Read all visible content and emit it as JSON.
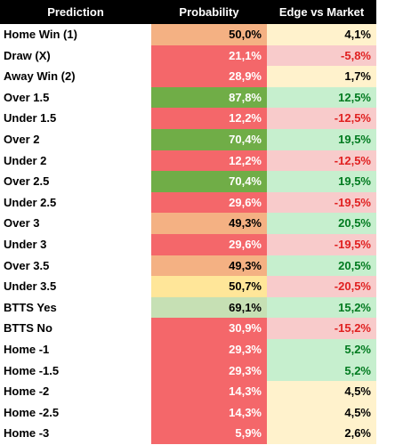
{
  "header": {
    "columns": [
      "Prediction",
      "Probability",
      "Edge vs Market"
    ]
  },
  "table": {
    "rows": [
      [
        "Home Win (1)",
        "50,0%",
        "4,1%"
      ],
      [
        "Draw (X)",
        "21,1%",
        "-5,8%"
      ],
      [
        "Away Win (2)",
        "28,9%",
        "1,7%"
      ],
      [
        "Over 1.5",
        "87,8%",
        "12,5%"
      ],
      [
        "Under 1.5",
        "12,2%",
        "-12,5%"
      ],
      [
        "Over 2",
        "70,4%",
        "19,5%"
      ],
      [
        "Under 2",
        "12,2%",
        "-12,5%"
      ],
      [
        "Over 2.5",
        "70,4%",
        "19,5%"
      ],
      [
        "Under 2.5",
        "29,6%",
        "-19,5%"
      ],
      [
        "Over 3",
        "49,3%",
        "20,5%"
      ],
      [
        "Under 3",
        "29,6%",
        "-19,5%"
      ],
      [
        "Over 3.5",
        "49,3%",
        "20,5%"
      ],
      [
        "Under 3.5",
        "50,7%",
        "-20,5%"
      ],
      [
        "BTTS Yes",
        "69,1%",
        "15,2%"
      ],
      [
        "BTTS No",
        "30,9%",
        "-15,2%"
      ],
      [
        "Home -1",
        "29,3%",
        "5,2%"
      ],
      [
        "Home -1.5",
        "29,3%",
        "5,2%"
      ],
      [
        "Home -2",
        "14,3%",
        "4,5%"
      ],
      [
        "Home -2.5",
        "14,3%",
        "4,5%"
      ],
      [
        "Home -3",
        "5,9%",
        "2,6%"
      ]
    ],
    "cell_fills": [
      [
        "#f4b183",
        "#fff2cc"
      ],
      [
        "#f4676a",
        "#f8cbcb"
      ],
      [
        "#f4676a",
        "#fff2cc"
      ],
      [
        "#70ad47",
        "#c6efce"
      ],
      [
        "#f4676a",
        "#f8cbcb"
      ],
      [
        "#70ad47",
        "#c6efce"
      ],
      [
        "#f4676a",
        "#f8cbcb"
      ],
      [
        "#70ad47",
        "#c6efce"
      ],
      [
        "#f4676a",
        "#f8cbcb"
      ],
      [
        "#f4b183",
        "#c6efce"
      ],
      [
        "#f4676a",
        "#f8cbcb"
      ],
      [
        "#f4b183",
        "#c6efce"
      ],
      [
        "#ffe699",
        "#f8cbcb"
      ],
      [
        "#c6e0b4",
        "#c6efce"
      ],
      [
        "#f4676a",
        "#f8cbcb"
      ],
      [
        "#f4676a",
        "#c6efce"
      ],
      [
        "#f4676a",
        "#c6efce"
      ],
      [
        "#f4676a",
        "#fff2cc"
      ],
      [
        "#f4676a",
        "#fff2cc"
      ],
      [
        "#f4676a",
        "#fff2cc"
      ]
    ]
  }
}
